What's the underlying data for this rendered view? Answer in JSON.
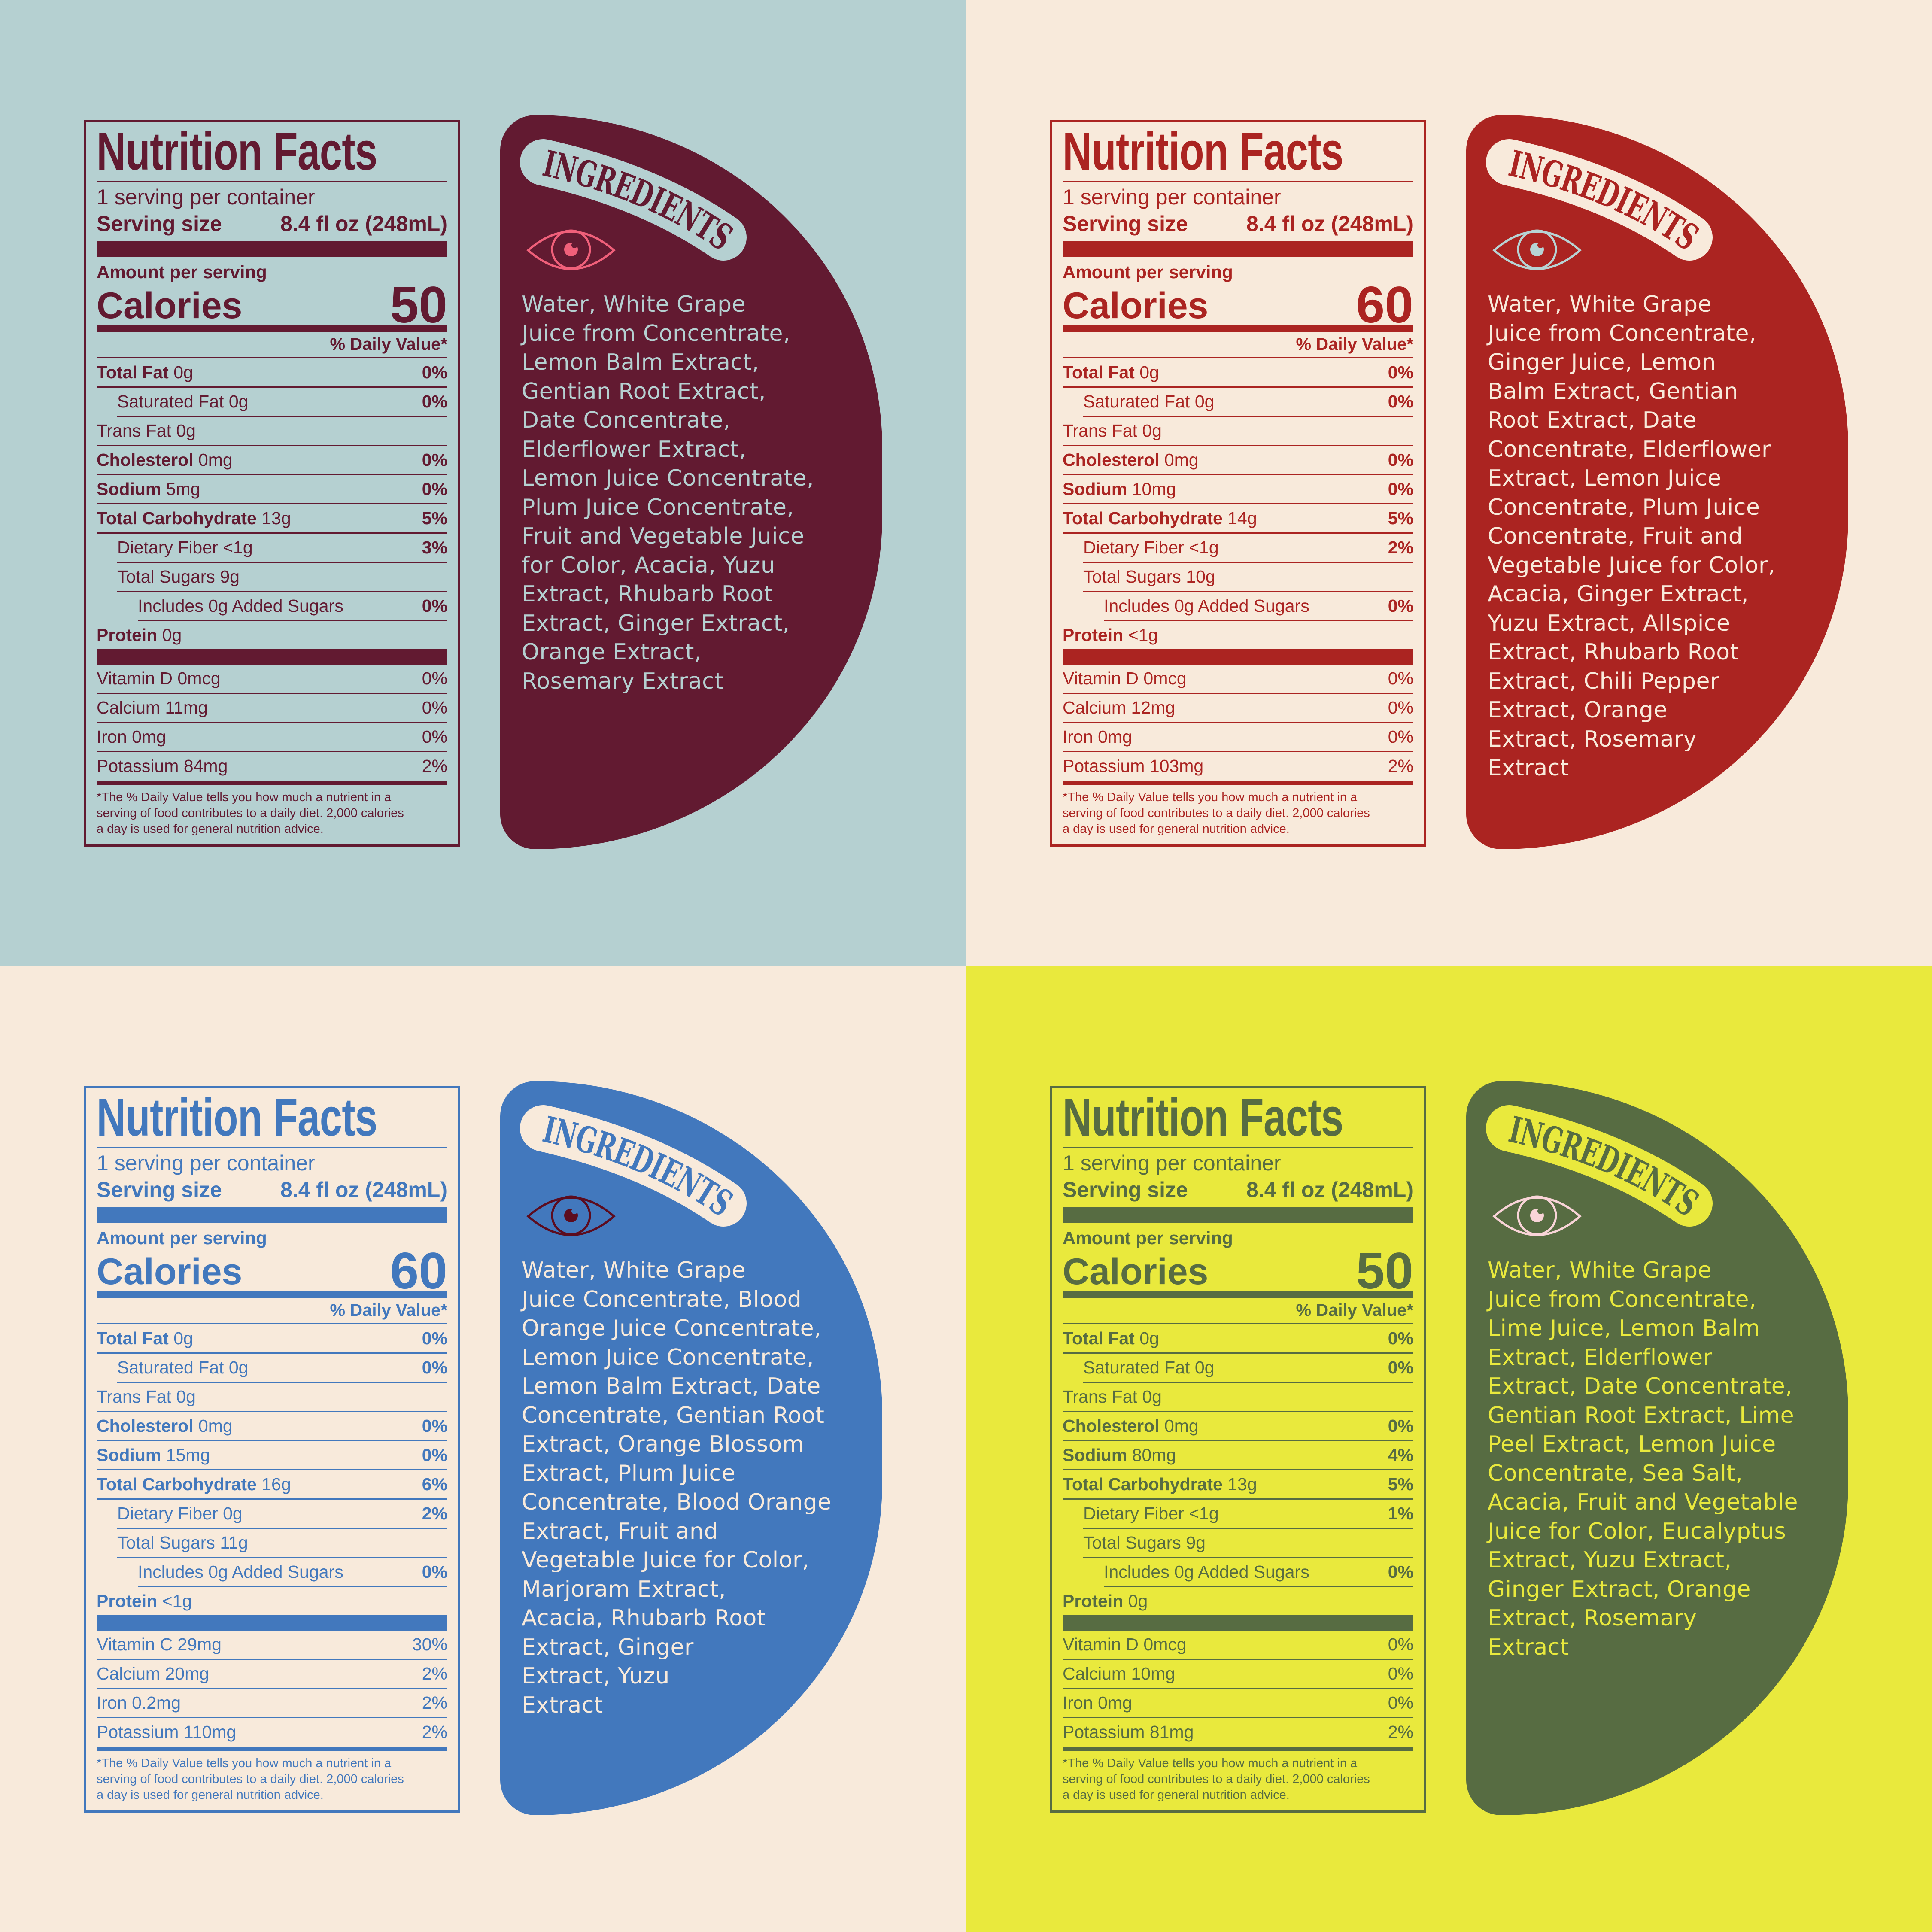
{
  "panels": [
    {
      "colors": {
        "background": "#b5d0d1",
        "ink": "#621a31",
        "panel_text": "#b5d0d1",
        "eye": "#f0607a"
      },
      "nutrition": {
        "title": "Nutrition Facts",
        "servings": "1 serving per container",
        "serving_size_label": "Serving size",
        "serving_size": "8.4 fl oz (248mL)",
        "amount_per_serving": "Amount per serving",
        "calories_label": "Calories",
        "calories": "50",
        "daily_value_header": "% Daily Value*",
        "rows": [
          {
            "label": "Total Fat",
            "amount": "0g",
            "dv": "0%"
          },
          {
            "label": "Saturated Fat",
            "amount": "0g",
            "dv": "0%"
          },
          {
            "label": "Trans Fat",
            "amount": "0g",
            "dv": ""
          },
          {
            "label": "Cholesterol",
            "amount": "0mg",
            "dv": "0%"
          },
          {
            "label": "Sodium",
            "amount": "5mg",
            "dv": "0%"
          },
          {
            "label": "Total Carbohydrate",
            "amount": "13g",
            "dv": "5%"
          },
          {
            "label": "Dietary Fiber",
            "amount": "<1g",
            "dv": "3%"
          },
          {
            "label": "Total Sugars",
            "amount": "9g",
            "dv": ""
          },
          {
            "label": "Includes",
            "amount": "0g Added Sugars",
            "dv": "0%"
          },
          {
            "label": "Protein",
            "amount": "0g",
            "dv": ""
          }
        ],
        "vitamins": [
          {
            "label": "Vitamin D",
            "amount": "0mcg",
            "dv": "0%"
          },
          {
            "label": "Calcium",
            "amount": "11mg",
            "dv": "0%"
          },
          {
            "label": "Iron",
            "amount": "0mg",
            "dv": "0%"
          },
          {
            "label": "Potassium",
            "amount": "84mg",
            "dv": "2%"
          }
        ],
        "footnote": [
          "*The % Daily Value tells you how much a nutrient in a",
          "serving of food contributes to a daily diet. 2,000 calories",
          "a day is used for general nutrition advice."
        ]
      },
      "ingredients": {
        "heading": "INGREDIENTS",
        "icon": "eye-icon",
        "lines": [
          "Water, White Grape",
          "Juice from Concentrate,",
          "Lemon Balm Extract,",
          "Gentian Root Extract,",
          "Date Concentrate,",
          "Elderflower Extract,",
          "Lemon Juice Concentrate,",
          "Plum Juice Concentrate,",
          "Fruit and Vegetable Juice",
          "for Color, Acacia, Yuzu",
          "Extract, Rhubarb Root",
          "Extract, Ginger Extract,",
          "Orange Extract,",
          "Rosemary Extract"
        ]
      }
    },
    {
      "colors": {
        "background": "#f8eadb",
        "ink": "#ab2421",
        "panel_text": "#f8eadb",
        "eye": "#b7d3d4"
      },
      "nutrition": {
        "title": "Nutrition Facts",
        "servings": "1 serving per container",
        "serving_size_label": "Serving size",
        "serving_size": "8.4 fl oz (248mL)",
        "amount_per_serving": "Amount per serving",
        "calories_label": "Calories",
        "calories": "60",
        "daily_value_header": "% Daily Value*",
        "rows": [
          {
            "label": "Total Fat",
            "amount": "0g",
            "dv": "0%"
          },
          {
            "label": "Saturated Fat",
            "amount": "0g",
            "dv": "0%"
          },
          {
            "label": "Trans Fat",
            "amount": "0g",
            "dv": ""
          },
          {
            "label": "Cholesterol",
            "amount": "0mg",
            "dv": "0%"
          },
          {
            "label": "Sodium",
            "amount": "10mg",
            "dv": "0%"
          },
          {
            "label": "Total Carbohydrate",
            "amount": "14g",
            "dv": "5%"
          },
          {
            "label": "Dietary Fiber",
            "amount": "<1g",
            "dv": "2%"
          },
          {
            "label": "Total Sugars",
            "amount": "10g",
            "dv": ""
          },
          {
            "label": "Includes",
            "amount": "0g Added Sugars",
            "dv": "0%"
          },
          {
            "label": "Protein",
            "amount": "<1g",
            "dv": ""
          }
        ],
        "vitamins": [
          {
            "label": "Vitamin D",
            "amount": "0mcg",
            "dv": "0%"
          },
          {
            "label": "Calcium",
            "amount": "12mg",
            "dv": "0%"
          },
          {
            "label": "Iron",
            "amount": "0mg",
            "dv": "0%"
          },
          {
            "label": "Potassium",
            "amount": "103mg",
            "dv": "2%"
          }
        ],
        "footnote": [
          "*The % Daily Value tells you how much a nutrient in a",
          "serving of food contributes to a daily diet. 2,000 calories",
          "a day is used for general nutrition advice."
        ]
      },
      "ingredients": {
        "heading": "INGREDIENTS",
        "icon": "eye-icon",
        "lines": [
          "Water, White Grape",
          "Juice from Concentrate,",
          "Ginger Juice, Lemon",
          "Balm Extract, Gentian",
          "Root Extract, Date",
          "Concentrate, Elderflower",
          "Extract, Lemon Juice",
          "Concentrate, Plum Juice",
          "Concentrate, Fruit and",
          "Vegetable Juice for Color,",
          "Acacia, Ginger Extract,",
          "Yuzu Extract, Allspice",
          "Extract, Rhubarb Root",
          "Extract, Chili Pepper",
          "Extract, Orange",
          "Extract, Rosemary",
          "Extract"
        ]
      }
    },
    {
      "colors": {
        "background": "#f8eadb",
        "ink": "#4278bd",
        "panel_text": "#f8eadb",
        "eye": "#5c0c1f"
      },
      "nutrition": {
        "title": "Nutrition Facts",
        "servings": "1 serving per container",
        "serving_size_label": "Serving size",
        "serving_size": "8.4 fl oz (248mL)",
        "amount_per_serving": "Amount per serving",
        "calories_label": "Calories",
        "calories": "60",
        "daily_value_header": "% Daily Value*",
        "rows": [
          {
            "label": "Total Fat",
            "amount": "0g",
            "dv": "0%"
          },
          {
            "label": "Saturated Fat",
            "amount": "0g",
            "dv": "0%"
          },
          {
            "label": "Trans Fat",
            "amount": "0g",
            "dv": ""
          },
          {
            "label": "Cholesterol",
            "amount": "0mg",
            "dv": "0%"
          },
          {
            "label": "Sodium",
            "amount": "15mg",
            "dv": "0%"
          },
          {
            "label": "Total Carbohydrate",
            "amount": "16g",
            "dv": "6%"
          },
          {
            "label": "Dietary Fiber",
            "amount": "0g",
            "dv": "2%"
          },
          {
            "label": "Total Sugars",
            "amount": "11g",
            "dv": ""
          },
          {
            "label": "Includes",
            "amount": "0g Added Sugars",
            "dv": "0%"
          },
          {
            "label": "Protein",
            "amount": "<1g",
            "dv": ""
          }
        ],
        "vitamins": [
          {
            "label": "Vitamin C",
            "amount": "29mg",
            "dv": "30%"
          },
          {
            "label": "Calcium",
            "amount": "20mg",
            "dv": "2%"
          },
          {
            "label": "Iron",
            "amount": "0.2mg",
            "dv": "2%"
          },
          {
            "label": "Potassium",
            "amount": "110mg",
            "dv": "2%"
          }
        ],
        "footnote": [
          "*The % Daily Value tells you how much a nutrient in a",
          "serving of food contributes to a daily diet. 2,000 calories",
          "a day is used for general nutrition advice."
        ]
      },
      "ingredients": {
        "heading": "INGREDIENTS",
        "icon": "eye-icon",
        "lines": [
          "Water, White Grape",
          "Juice Concentrate, Blood",
          "Orange Juice Concentrate,",
          "Lemon Juice Concentrate,",
          "Lemon Balm Extract, Date",
          "Concentrate, Gentian Root",
          "Extract, Orange Blossom",
          "Extract, Plum Juice",
          "Concentrate, Blood Orange",
          "Extract, Fruit and",
          "Vegetable Juice for Color,",
          "Marjoram Extract,",
          "Acacia, Rhubarb Root",
          "Extract, Ginger",
          "Extract, Yuzu",
          "Extract"
        ]
      }
    },
    {
      "colors": {
        "background": "#e9e93d",
        "ink": "#576c42",
        "panel_text": "#e9e93d",
        "eye": "#f9d4d8"
      },
      "nutrition": {
        "title": "Nutrition Facts",
        "servings": "1 serving per container",
        "serving_size_label": "Serving size",
        "serving_size": "8.4 fl oz (248mL)",
        "amount_per_serving": "Amount per serving",
        "calories_label": "Calories",
        "calories": "50",
        "daily_value_header": "% Daily Value*",
        "rows": [
          {
            "label": "Total Fat",
            "amount": "0g",
            "dv": "0%"
          },
          {
            "label": "Saturated Fat",
            "amount": "0g",
            "dv": "0%"
          },
          {
            "label": "Trans Fat",
            "amount": "0g",
            "dv": ""
          },
          {
            "label": "Cholesterol",
            "amount": "0mg",
            "dv": "0%"
          },
          {
            "label": "Sodium",
            "amount": "80mg",
            "dv": "4%"
          },
          {
            "label": "Total Carbohydrate",
            "amount": "13g",
            "dv": "5%"
          },
          {
            "label": "Dietary Fiber",
            "amount": "<1g",
            "dv": "1%"
          },
          {
            "label": "Total Sugars",
            "amount": "9g",
            "dv": ""
          },
          {
            "label": "Includes",
            "amount": "0g Added Sugars",
            "dv": "0%"
          },
          {
            "label": "Protein",
            "amount": "0g",
            "dv": ""
          }
        ],
        "vitamins": [
          {
            "label": "Vitamin D",
            "amount": "0mcg",
            "dv": "0%"
          },
          {
            "label": "Calcium",
            "amount": "10mg",
            "dv": "0%"
          },
          {
            "label": "Iron",
            "amount": "0mg",
            "dv": "0%"
          },
          {
            "label": "Potassium",
            "amount": "81mg",
            "dv": "2%"
          }
        ],
        "footnote": [
          "*The % Daily Value tells you how much a nutrient in a",
          "serving of food contributes to a daily diet. 2,000 calories",
          "a day is used for general nutrition advice."
        ]
      },
      "ingredients": {
        "heading": "INGREDIENTS",
        "icon": "eye-icon",
        "lines": [
          "Water, White Grape",
          "Juice from Concentrate,",
          "Lime Juice, Lemon Balm",
          "Extract, Elderflower",
          "Extract, Date Concentrate,",
          "Gentian Root Extract, Lime",
          "Peel Extract, Lemon Juice",
          "Concentrate, Sea Salt,",
          "Acacia, Fruit and Vegetable",
          "Juice for Color, Eucalyptus",
          "Extract, Yuzu Extract,",
          "Ginger Extract, Orange",
          "Extract, Rosemary",
          "Extract"
        ]
      }
    }
  ]
}
